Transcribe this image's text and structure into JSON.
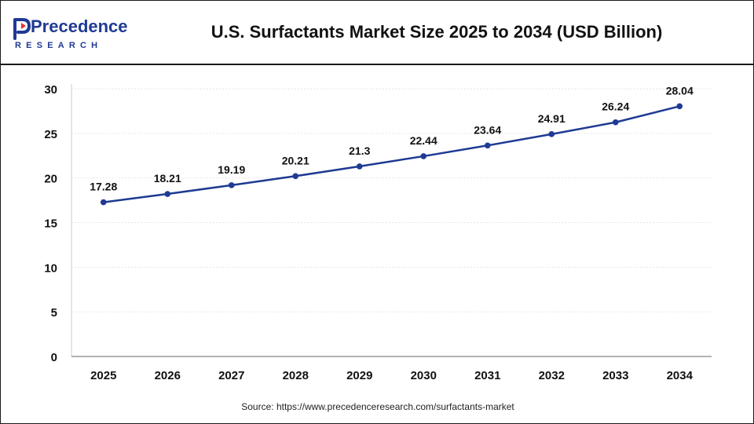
{
  "brand": {
    "name_line1": "Precedence",
    "name_line2": "RESEARCH",
    "color_primary": "#1f3a93",
    "color_accent": "#e3342f"
  },
  "source": {
    "label": "Source:",
    "url": "https://www.precedenceresearch.com/surfactants-market"
  },
  "chart_data": {
    "type": "line",
    "title": "U.S. Surfactants Market Size 2025 to 2034 (USD Billion)",
    "categories": [
      "2025",
      "2026",
      "2027",
      "2028",
      "2029",
      "2030",
      "2031",
      "2032",
      "2033",
      "2034"
    ],
    "series": [
      {
        "values": [
          17.28,
          18.21,
          19.19,
          20.21,
          21.3,
          22.44,
          23.64,
          24.91,
          26.24,
          28.04
        ],
        "data_labels": [
          "17.28",
          "18.21",
          "19.19",
          "20.21",
          "21.3",
          "22.44",
          "23.64",
          "24.91",
          "26.24",
          "28.04"
        ],
        "color": "#1f3a93"
      }
    ],
    "yticks": [
      "0",
      "5",
      "10",
      "15",
      "20",
      "25",
      "30"
    ],
    "ylim": [
      0,
      30
    ],
    "grid": true,
    "legend": "none"
  }
}
